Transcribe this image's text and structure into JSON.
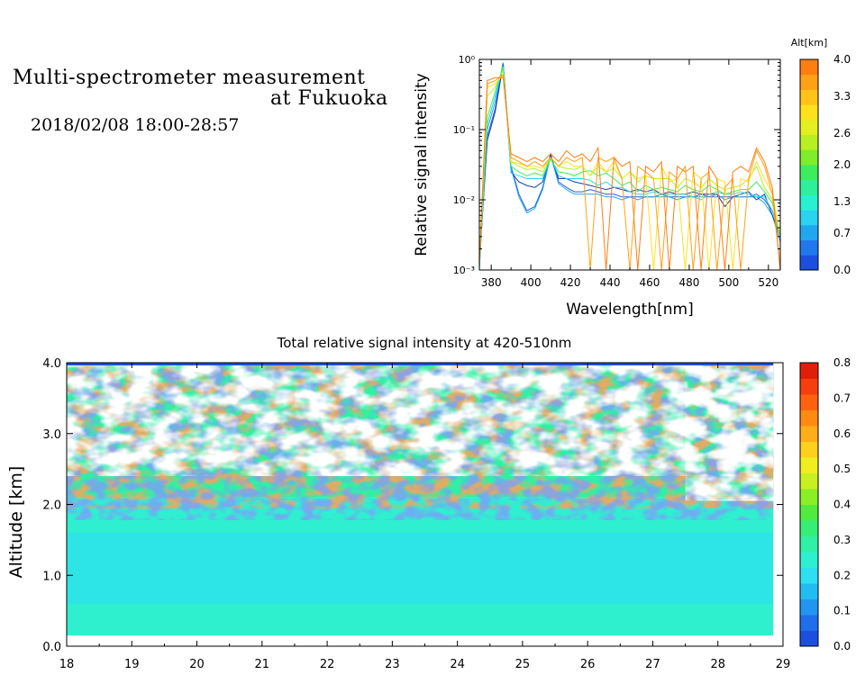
{
  "header": {
    "title_line1": "Multi-spectrometer measurement",
    "title_line2": "at Fukuoka",
    "date_range": "2018/02/08 18:00-28:57"
  },
  "chart_data": [
    {
      "type": "line",
      "xlabel": "Wavelength[nm]",
      "ylabel": "Relative signal intensity",
      "xlim": [
        374,
        526
      ],
      "ylim": [
        0.001,
        1
      ],
      "y_scale": "log",
      "x_ticks": [
        "380",
        "400",
        "420",
        "440",
        "460",
        "480",
        "500",
        "520"
      ],
      "x_tick_values": [
        380,
        400,
        420,
        440,
        460,
        480,
        500,
        520
      ],
      "y_ticks": [
        "10⁰",
        "10⁻¹",
        "10⁻²",
        "10⁻³"
      ],
      "y_tick_values": [
        1,
        0.1,
        0.01,
        0.001
      ],
      "colorbar": {
        "label": "Alt[km]",
        "ticks": [
          "4.0",
          "3.3",
          "2.6",
          "2.0",
          "1.3",
          "0.7",
          "0.0"
        ],
        "tick_values": [
          4.0,
          3.3,
          2.6,
          2.0,
          1.3,
          0.7,
          0.0
        ],
        "range": [
          0.0,
          4.0
        ],
        "colors": [
          "#1c4fe0",
          "#1f78ec",
          "#21a7f0",
          "#2ad3f0",
          "#29f0d0",
          "#2ef09a",
          "#3ded5c",
          "#7ded2c",
          "#b8ef22",
          "#e4ee20",
          "#fde11f",
          "#ffc319",
          "#ffa114",
          "#ff7e10"
        ]
      },
      "x": [
        374,
        378,
        382,
        386,
        390,
        394,
        398,
        402,
        406,
        410,
        414,
        418,
        422,
        426,
        430,
        434,
        438,
        442,
        446,
        450,
        454,
        458,
        462,
        466,
        470,
        474,
        478,
        482,
        486,
        490,
        494,
        498,
        502,
        506,
        510,
        514,
        518,
        522,
        526
      ],
      "series": [
        {
          "color": "#1f5fe6",
          "values": [
            0.0012,
            0.08,
            0.2,
            0.9,
            0.03,
            0.012,
            0.007,
            0.008,
            0.015,
            0.045,
            0.018,
            0.015,
            0.013,
            0.013,
            0.014,
            0.013,
            0.012,
            0.012,
            0.011,
            0.011,
            0.011,
            0.011,
            0.011,
            0.012,
            0.011,
            0.011,
            0.011,
            0.011,
            0.012,
            0.011,
            0.011,
            0.011,
            0.011,
            0.011,
            0.011,
            0.012,
            0.01,
            0.007,
            0.003
          ]
        },
        {
          "color": "#21a7f0",
          "values": [
            0.0011,
            0.1,
            0.25,
            0.9,
            0.028,
            0.011,
            0.0065,
            0.0075,
            0.014,
            0.042,
            0.017,
            0.014,
            0.012,
            0.012,
            0.012,
            0.012,
            0.011,
            0.011,
            0.01,
            0.011,
            0.01,
            0.011,
            0.011,
            0.011,
            0.011,
            0.01,
            0.011,
            0.011,
            0.011,
            0.011,
            0.012,
            0.01,
            0.011,
            0.011,
            0.011,
            0.011,
            0.009,
            0.006,
            0.0025
          ]
        },
        {
          "color": "#1a3fa8",
          "values": [
            0.0013,
            0.07,
            0.18,
            0.85,
            0.025,
            0.018,
            0.016,
            0.015,
            0.018,
            0.044,
            0.02,
            0.02,
            0.018,
            0.017,
            0.016,
            0.015,
            0.014,
            0.015,
            0.014,
            0.013,
            0.014,
            0.013,
            0.014,
            0.012,
            0.013,
            0.012,
            0.012,
            0.013,
            0.012,
            0.012,
            0.012,
            0.008,
            0.011,
            0.012,
            0.013,
            0.01,
            0.012,
            0.006,
            0.003
          ]
        },
        {
          "color": "#2ad3f0",
          "values": [
            0.001,
            0.12,
            0.3,
            0.8,
            0.024,
            0.022,
            0.02,
            0.02,
            0.02,
            0.04,
            0.022,
            0.02,
            0.02,
            0.02,
            0.019,
            0.016,
            0.018,
            0.015,
            0.015,
            0.013,
            0.012,
            0.012,
            0.013,
            0.012,
            0.012,
            0.012,
            0.012,
            0.011,
            0.01,
            0.012,
            0.013,
            0.012,
            0.012,
            0.013,
            0.012,
            0.011,
            0.011,
            0.007,
            0.003
          ]
        },
        {
          "color": "#3ded5c",
          "values": [
            0.0012,
            0.15,
            0.35,
            0.8,
            0.03,
            0.025,
            0.022,
            0.024,
            0.022,
            0.038,
            0.025,
            0.024,
            0.022,
            0.025,
            0.026,
            0.022,
            0.024,
            0.02,
            0.016,
            0.018,
            0.013,
            0.016,
            0.014,
            0.015,
            0.014,
            0.013,
            0.016,
            0.014,
            0.013,
            0.016,
            0.014,
            0.012,
            0.013,
            0.014,
            0.014,
            0.018,
            0.013,
            0.009,
            0.003
          ]
        },
        {
          "color": "#b8ef22",
          "values": [
            0.0012,
            0.3,
            0.4,
            0.7,
            0.035,
            0.03,
            0.027,
            0.028,
            0.025,
            0.04,
            0.03,
            0.028,
            0.027,
            0.03,
            0.022,
            0.03,
            0.025,
            0.028,
            0.02,
            0.025,
            0.018,
            0.022,
            0.02,
            0.02,
            0.02,
            0.015,
            0.02,
            0.018,
            0.015,
            0.02,
            0.016,
            0.014,
            0.015,
            0.016,
            0.02,
            0.03,
            0.015,
            0.01,
            0.003
          ]
        },
        {
          "color": "#fde11f",
          "values": [
            0.0012,
            0.4,
            0.45,
            0.6,
            0.035,
            0.033,
            0.03,
            0.03,
            0.028,
            0.04,
            0.03,
            0.035,
            0.03,
            0.03,
            0.022,
            0.035,
            0.025,
            0.035,
            0.02,
            0.025,
            0.02,
            0.022,
            0.0009,
            0.03,
            0.018,
            0.02,
            0.0009,
            0.025,
            0.02,
            0.0009,
            0.02,
            0.018,
            0.0009,
            0.02,
            0.018,
            0.035,
            0.02,
            0.012,
            0.003
          ]
        },
        {
          "color": "#ffa114",
          "values": [
            0.0012,
            0.45,
            0.5,
            0.6,
            0.04,
            0.035,
            0.03,
            0.035,
            0.03,
            0.04,
            0.03,
            0.04,
            0.035,
            0.04,
            0.0009,
            0.04,
            0.035,
            0.04,
            0.02,
            0.0009,
            0.03,
            0.025,
            0.02,
            0.0009,
            0.025,
            0.02,
            0.03,
            0.0009,
            0.02,
            0.025,
            0.0009,
            0.015,
            0.02,
            0.0009,
            0.02,
            0.05,
            0.03,
            0.012,
            0.0009
          ]
        },
        {
          "color": "#ff7e10",
          "values": [
            0.0012,
            0.5,
            0.55,
            0.55,
            0.045,
            0.04,
            0.035,
            0.04,
            0.035,
            0.045,
            0.035,
            0.05,
            0.04,
            0.045,
            0.035,
            0.055,
            0.0009,
            0.04,
            0.03,
            0.035,
            0.0009,
            0.03,
            0.025,
            0.035,
            0.0009,
            0.03,
            0.025,
            0.03,
            0.0009,
            0.03,
            0.02,
            0.0009,
            0.025,
            0.03,
            0.025,
            0.055,
            0.035,
            0.015,
            0.0009
          ]
        }
      ]
    },
    {
      "type": "heatmap",
      "title": "Total relative signal intensity at 420-510nm",
      "ylabel": "Altitude [km]",
      "xlim": [
        18,
        29
      ],
      "ylim": [
        0.0,
        4.0
      ],
      "x_ticks": [
        "18",
        "19",
        "20",
        "21",
        "22",
        "23",
        "24",
        "25",
        "26",
        "27",
        "28",
        "29"
      ],
      "x_tick_values": [
        18,
        19,
        20,
        21,
        22,
        23,
        24,
        25,
        26,
        27,
        28,
        29
      ],
      "y_ticks": [
        "0.0",
        "1.0",
        "2.0",
        "3.0",
        "4.0"
      ],
      "y_tick_values": [
        0.0,
        1.0,
        2.0,
        3.0,
        4.0
      ],
      "colorbar": {
        "ticks": [
          "0.8",
          "0.7",
          "0.6",
          "0.5",
          "0.4",
          "0.3",
          "0.2",
          "0.1",
          "0.0"
        ],
        "tick_values": [
          0.8,
          0.7,
          0.6,
          0.5,
          0.4,
          0.3,
          0.2,
          0.1,
          0.0
        ],
        "range": [
          0.0,
          0.8
        ],
        "colors": [
          "#1c4fe0",
          "#1f6fea",
          "#2196f0",
          "#22bdf0",
          "#2ee0ef",
          "#2ef0cf",
          "#2ff0a4",
          "#35ee76",
          "#4fec3d",
          "#8aef26",
          "#c8ef22",
          "#f0ee21",
          "#fdd01e",
          "#ffad18",
          "#ff8a12",
          "#ff620e",
          "#f53f0d",
          "#e01f0a"
        ]
      },
      "data_extent": {
        "time_end": 28.85,
        "alt_min": 0.15,
        "alt_max": 4.0,
        "low_level_value": 0.26,
        "mid_level_value": 0.22,
        "boundary_layer_top_km": 2.1
      }
    }
  ]
}
